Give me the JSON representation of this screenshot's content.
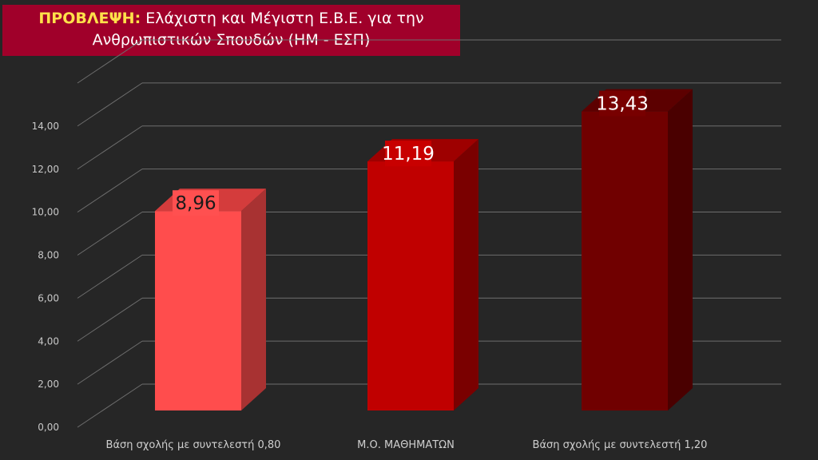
{
  "title": {
    "prefix": "ΠΡΟΒΛΕΨΗ:",
    "line1": "Ελάχιστη και Μέγιστη Ε.Β.Ε. για την",
    "line2": "Ανθρωπιστικών Σπουδών (ΗΜ - ΕΣΠ)"
  },
  "chart_data": {
    "type": "bar",
    "categories": [
      "Βάση σχολής με συντελεστή 0,80",
      "Μ.Ο. ΜΑΘΗΜΑΤΩΝ",
      "Βάση σχολής με συντελεστή 1,20"
    ],
    "values": [
      8.96,
      11.19,
      13.43
    ],
    "data_labels": [
      "8,96",
      "11,19",
      "13,43"
    ],
    "yticks": [
      "0,00",
      "2,00",
      "4,00",
      "6,00",
      "8,00",
      "10,00",
      "12,00",
      "14,00"
    ],
    "ylim": [
      0,
      16
    ],
    "grid": true,
    "legend": "none",
    "style": "3d-column",
    "colors": [
      {
        "front": "#ff4d4d",
        "side": "#a83232",
        "top": "#d43c3c",
        "label_bg": "#ff5050",
        "label_fg": "#1a1a1a"
      },
      {
        "front": "#c00000",
        "side": "#7a0000",
        "top": "#9e0000",
        "label_bg": "#c80000",
        "label_fg": "#ffffff"
      },
      {
        "front": "#700000",
        "side": "#4a0000",
        "top": "#5c0000",
        "label_bg": "#780000",
        "label_fg": "#ffffff"
      }
    ]
  }
}
